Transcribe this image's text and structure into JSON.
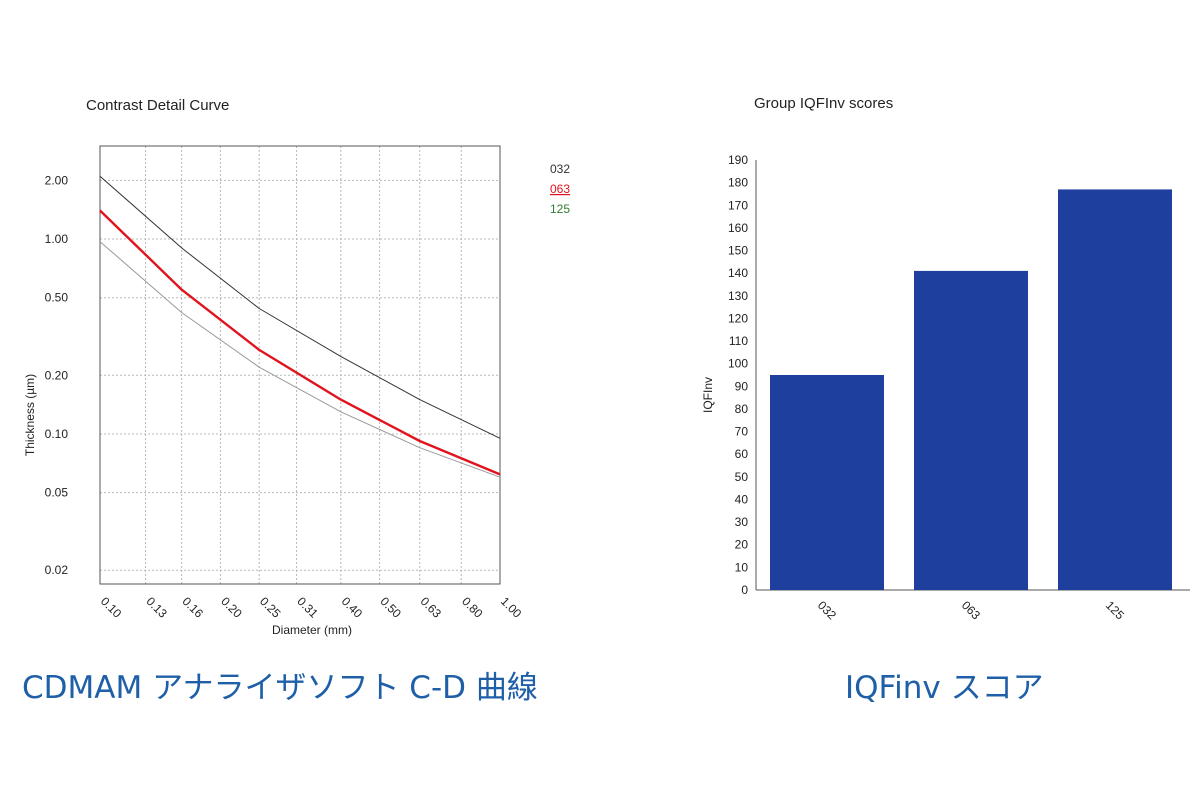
{
  "captions": {
    "left": "CDMAM アナライザソフト C-D 曲線",
    "right": "IQFinv スコア"
  },
  "colors": {
    "series_032": "#333333",
    "series_063": "#e0141e",
    "series_125": "#9a9a9a",
    "legend_125": "#2e7d32",
    "bar": "#1f3f9e",
    "caption": "#1f5fa8"
  },
  "chart_data": [
    {
      "type": "line",
      "title": "Contrast Detail Curve",
      "xlabel": "Diameter (mm)",
      "ylabel": "Thickness (µm)",
      "x_scale": "log",
      "y_scale": "log",
      "x_tick_labels": [
        "0.10",
        "0.13",
        "0.16",
        "0.20",
        "0.25",
        "0.31",
        "0.40",
        "0.50",
        "0.63",
        "0.80",
        "1.00"
      ],
      "y_tick_labels": [
        "0.02",
        "0.05",
        "0.10",
        "0.20",
        "0.50",
        "1.00",
        "2.00"
      ],
      "xlim": [
        0.1,
        1.0
      ],
      "ylim": [
        0.017,
        3.0
      ],
      "grid": true,
      "legend_position": "top-right",
      "series": [
        {
          "name": "032",
          "x": [
            0.1,
            0.16,
            0.25,
            0.4,
            0.63,
            1.0
          ],
          "y": [
            2.1,
            0.9,
            0.44,
            0.25,
            0.15,
            0.095
          ]
        },
        {
          "name": "063",
          "x": [
            0.1,
            0.16,
            0.25,
            0.4,
            0.63,
            1.0
          ],
          "y": [
            1.4,
            0.55,
            0.27,
            0.15,
            0.092,
            0.062
          ]
        },
        {
          "name": "125",
          "x": [
            0.1,
            0.16,
            0.25,
            0.4,
            0.63,
            1.0
          ],
          "y": [
            0.97,
            0.42,
            0.22,
            0.13,
            0.085,
            0.06
          ]
        }
      ]
    },
    {
      "type": "bar",
      "title": "Group IQFInv scores",
      "xlabel": "",
      "ylabel": "IQFInv",
      "categories": [
        "032",
        "063",
        "125"
      ],
      "values": [
        95,
        141,
        177
      ],
      "ylim": [
        0,
        190
      ],
      "yticks": [
        0,
        10,
        20,
        30,
        40,
        50,
        60,
        70,
        80,
        90,
        100,
        110,
        120,
        130,
        140,
        150,
        160,
        170,
        180,
        190
      ],
      "grid": false
    }
  ]
}
